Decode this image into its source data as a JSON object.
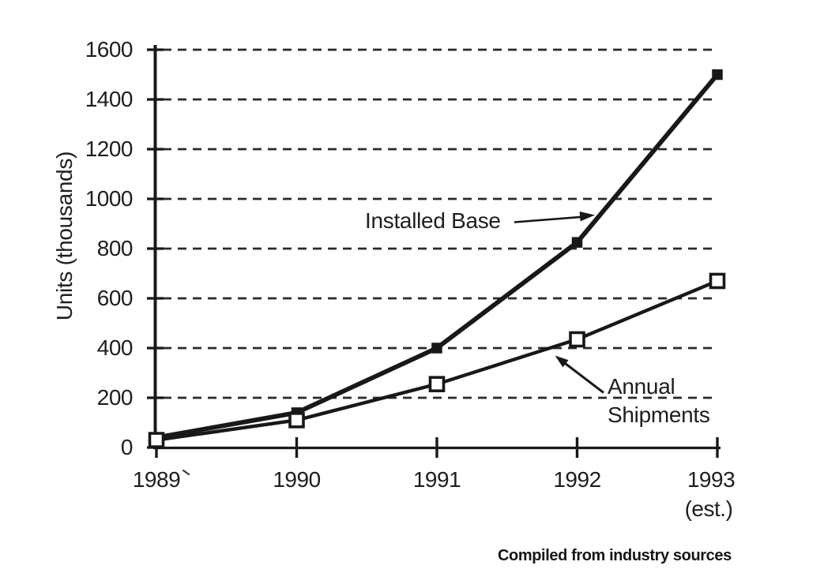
{
  "colors": {
    "ink": "#181818",
    "grid": "#2a2a2a",
    "background": "#ffffff"
  },
  "chart_data": {
    "type": "line",
    "title": "",
    "xlabel": "",
    "ylabel": "Units (thousands)",
    "categories": [
      "1989",
      "1990",
      "1991",
      "1992",
      "1993"
    ],
    "x_last_note": "(est.)",
    "y_ticks": [
      0,
      200,
      400,
      600,
      800,
      1000,
      1200,
      1400,
      1600
    ],
    "ylim": [
      0,
      1600
    ],
    "grid": "horizontal-dashed",
    "legend_position": "none",
    "series": [
      {
        "name": "Installed Base",
        "marker": "filled-square",
        "values": [
          40,
          140,
          400,
          825,
          1500
        ]
      },
      {
        "name": "Annual Shipments",
        "marker": "open-square",
        "values": [
          30,
          110,
          255,
          435,
          670
        ]
      }
    ],
    "annotations": [
      {
        "text": "Installed Base",
        "target_series": "Installed Base"
      },
      {
        "text": "Annual Shipments",
        "lines": [
          "Annual",
          "Shipments"
        ],
        "target_series": "Annual Shipments"
      }
    ],
    "caption": "Compiled from industry sources"
  }
}
